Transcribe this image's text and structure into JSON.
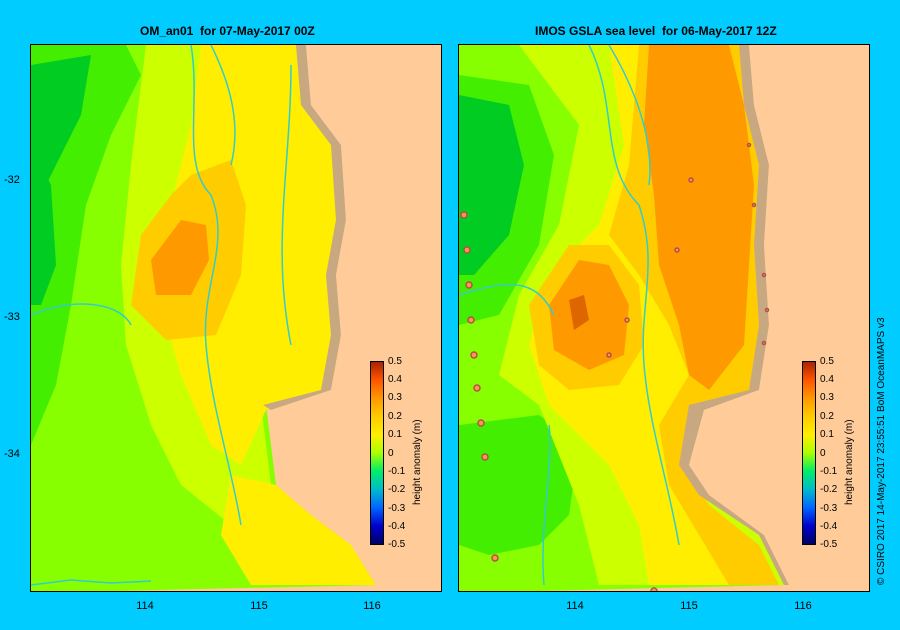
{
  "panels": [
    {
      "title": "OM_an01  for 07-May-2017 00Z"
    },
    {
      "title": "IMOS GSLA sea level  for 06-May-2017 12Z"
    }
  ],
  "axes": {
    "y_ticks": [
      "-32",
      "-33",
      "-34"
    ],
    "x_ticks": [
      "114",
      "115",
      "116"
    ]
  },
  "colorbar": {
    "label": "height anomaly (m)",
    "ticks": [
      "0.5",
      "0.4",
      "0.3",
      "0.2",
      "0.1",
      "0",
      "-0.1",
      "-0.2",
      "-0.3",
      "-0.4",
      "-0.5"
    ],
    "range": [
      -0.5,
      0.5
    ]
  },
  "credit": "© CSIRO 2017   14-May-2017 23:55:51 BoM OceanMAPS v3",
  "colors": {
    "background": "#00ccff",
    "land": "#ffcc99",
    "coast_shelf": "#c8a880",
    "contour_line": "#33cccc"
  }
}
